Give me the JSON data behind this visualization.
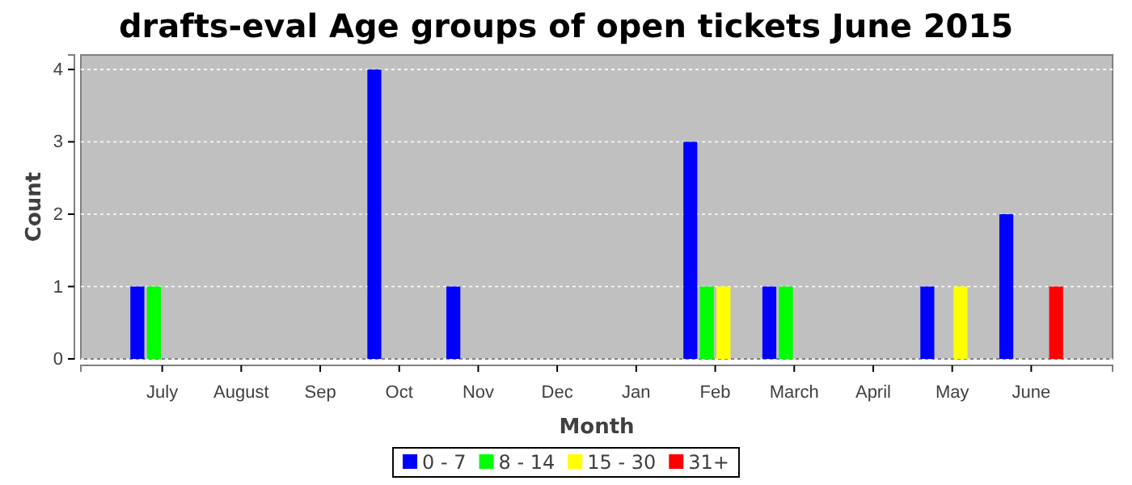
{
  "chart_data": {
    "type": "bar",
    "title": "drafts-eval Age groups of open tickets June 2015",
    "xlabel": "Month",
    "ylabel": "Count",
    "categories": [
      "July",
      "August",
      "Sep",
      "Oct",
      "Nov",
      "Dec",
      "Jan",
      "Feb",
      "March",
      "April",
      "May",
      "June"
    ],
    "series": [
      {
        "name": "0 - 7",
        "color": "#0000ff",
        "values": [
          1,
          0,
          0,
          4,
          1,
          0,
          0,
          3,
          1,
          0,
          1,
          2
        ]
      },
      {
        "name": "8 - 14",
        "color": "#00ff00",
        "values": [
          1,
          0,
          0,
          0,
          0,
          0,
          0,
          1,
          1,
          0,
          0,
          0
        ]
      },
      {
        "name": "15 - 30",
        "color": "#ffff00",
        "values": [
          0,
          0,
          0,
          0,
          0,
          0,
          0,
          1,
          0,
          0,
          1,
          0
        ]
      },
      {
        "name": "31+",
        "color": "#ff0000",
        "values": [
          0,
          0,
          0,
          0,
          0,
          0,
          0,
          0,
          0,
          0,
          0,
          1
        ]
      }
    ],
    "ylim": [
      0,
      4.2
    ],
    "yticks": [
      0,
      1,
      2,
      3,
      4
    ],
    "grid": "y",
    "legend": "bottom"
  }
}
